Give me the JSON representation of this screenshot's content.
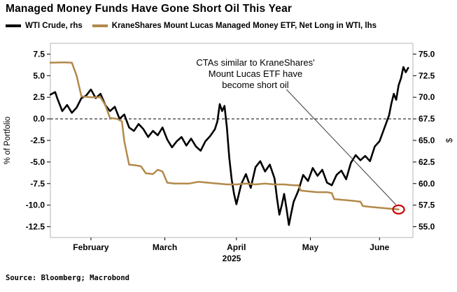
{
  "title": "Managed Money Funds Have Gone Short Oil This Year",
  "legend": [
    {
      "label": "WTI Crude, rhs",
      "color": "#000000"
    },
    {
      "label": "KraneShares Mount Lucas Managed Money ETF, Net Long in WTI, lhs",
      "color": "#b3894a"
    }
  ],
  "annotation": {
    "text": "CTAs similar to KraneShares'\nMount Lucas ETF have\nbecome short oil"
  },
  "source": "Source: Bloomberg; Macrobond",
  "chart_data": {
    "type": "line",
    "title": "Managed Money Funds Have Gone Short Oil This Year",
    "x_unit": "days (late January through mid-June 2025)",
    "x_range": [
      0,
      152
    ],
    "x_ticks": [
      {
        "x": 17,
        "label": "February"
      },
      {
        "x": 48,
        "label": "March"
      },
      {
        "x": 78,
        "label": "April"
      },
      {
        "x": 109,
        "label": "May"
      },
      {
        "x": 138,
        "label": "June"
      }
    ],
    "x_year_label": "2025",
    "zero_line": 0,
    "left_axis": {
      "label": "% of Portfolio",
      "min": -13.75,
      "max": 8.75,
      "ticks": [
        {
          "v": 7.5,
          "label": "7.5"
        },
        {
          "v": 5,
          "label": "5.0"
        },
        {
          "v": 2.5,
          "label": "2.5"
        },
        {
          "v": 0,
          "label": "0.0"
        },
        {
          "v": -2.5,
          "label": "-2.5"
        },
        {
          "v": -5,
          "label": "-5.0"
        },
        {
          "v": -7.5,
          "label": "-7.5"
        },
        {
          "v": -10,
          "label": "-10.0"
        },
        {
          "v": -12.5,
          "label": "-12.5"
        }
      ]
    },
    "right_axis": {
      "label": "$",
      "min": 53.75,
      "max": 76.25,
      "ticks": [
        {
          "v": 75,
          "label": "75.0"
        },
        {
          "v": 72.5,
          "label": "72.5"
        },
        {
          "v": 70,
          "label": "70.0"
        },
        {
          "v": 67.5,
          "label": "67.5"
        },
        {
          "v": 65,
          "label": "65.0"
        },
        {
          "v": 62.5,
          "label": "62.5"
        },
        {
          "v": 60,
          "label": "60.0"
        },
        {
          "v": 57.5,
          "label": "57.5"
        },
        {
          "v": 55,
          "label": "55.0"
        }
      ]
    },
    "series": [
      {
        "name": "WTI Crude, rhs",
        "axis": "right",
        "color": "#000000",
        "width": 2.6,
        "points": [
          [
            0,
            70.3
          ],
          [
            2,
            70.6
          ],
          [
            3,
            69.8
          ],
          [
            5,
            68.4
          ],
          [
            7,
            69.1
          ],
          [
            9,
            68.2
          ],
          [
            11,
            68.8
          ],
          [
            13,
            69.9
          ],
          [
            15,
            70.2
          ],
          [
            17,
            70.9
          ],
          [
            19,
            69.9
          ],
          [
            21,
            70.4
          ],
          [
            23,
            69.1
          ],
          [
            25,
            68.4
          ],
          [
            27,
            68.9
          ],
          [
            29,
            67.5
          ],
          [
            31,
            68.0
          ],
          [
            33,
            66.5
          ],
          [
            35,
            66.1
          ],
          [
            37,
            66.9
          ],
          [
            39,
            66.3
          ],
          [
            41,
            65.4
          ],
          [
            43,
            66.1
          ],
          [
            45,
            65.6
          ],
          [
            47,
            66.5
          ],
          [
            49,
            65.1
          ],
          [
            51,
            64.2
          ],
          [
            53,
            64.9
          ],
          [
            55,
            65.4
          ],
          [
            57,
            64.4
          ],
          [
            59,
            65.2
          ],
          [
            61,
            64.3
          ],
          [
            63,
            63.8
          ],
          [
            65,
            64.9
          ],
          [
            67,
            65.5
          ],
          [
            69,
            66.3
          ],
          [
            70,
            67.2
          ],
          [
            71,
            69.2
          ],
          [
            72,
            68.4
          ],
          [
            73,
            69.0
          ],
          [
            74,
            66.5
          ],
          [
            75,
            63.0
          ],
          [
            76,
            60.5
          ],
          [
            77,
            58.8
          ],
          [
            78,
            57.6
          ],
          [
            80,
            59.9
          ],
          [
            82,
            61.1
          ],
          [
            84,
            59.5
          ],
          [
            86,
            61.9
          ],
          [
            88,
            62.6
          ],
          [
            90,
            61.4
          ],
          [
            92,
            62.2
          ],
          [
            94,
            60.6
          ],
          [
            95,
            58.3
          ],
          [
            96,
            56.4
          ],
          [
            97,
            57.5
          ],
          [
            98,
            58.8
          ],
          [
            99,
            57.1
          ],
          [
            100,
            55.2
          ],
          [
            101,
            56.6
          ],
          [
            102,
            57.9
          ],
          [
            104,
            59.2
          ],
          [
            106,
            61.0
          ],
          [
            108,
            60.3
          ],
          [
            110,
            61.8
          ],
          [
            112,
            60.9
          ],
          [
            114,
            61.6
          ],
          [
            116,
            60.1
          ],
          [
            118,
            59.8
          ],
          [
            120,
            61.0
          ],
          [
            122,
            61.5
          ],
          [
            124,
            60.5
          ],
          [
            126,
            62.4
          ],
          [
            128,
            63.3
          ],
          [
            130,
            62.7
          ],
          [
            132,
            63.2
          ],
          [
            134,
            62.6
          ],
          [
            136,
            64.3
          ],
          [
            138,
            64.9
          ],
          [
            140,
            66.4
          ],
          [
            142,
            67.9
          ],
          [
            143,
            69.3
          ],
          [
            144,
            70.4
          ],
          [
            145,
            69.7
          ],
          [
            146,
            71.4
          ],
          [
            147,
            72.2
          ],
          [
            148,
            73.5
          ],
          [
            149,
            72.9
          ],
          [
            150,
            73.4
          ]
        ]
      },
      {
        "name": "KraneShares Mount Lucas Managed Money ETF, Net Long in WTI, lhs",
        "axis": "left",
        "color": "#b3894a",
        "width": 2.5,
        "points": [
          [
            0,
            6.5
          ],
          [
            6,
            6.55
          ],
          [
            9,
            6.5
          ],
          [
            11,
            5.0
          ],
          [
            13,
            2.6
          ],
          [
            17,
            2.5
          ],
          [
            21,
            2.5
          ],
          [
            23,
            1.6
          ],
          [
            25,
            0.1
          ],
          [
            28,
            0.0
          ],
          [
            30,
            -0.3
          ],
          [
            31,
            -2.6
          ],
          [
            33,
            -5.3
          ],
          [
            36,
            -5.4
          ],
          [
            38,
            -5.5
          ],
          [
            40,
            -6.3
          ],
          [
            43,
            -6.4
          ],
          [
            45,
            -5.9
          ],
          [
            47,
            -6.1
          ],
          [
            49,
            -7.4
          ],
          [
            52,
            -7.5
          ],
          [
            58,
            -7.5
          ],
          [
            62,
            -7.3
          ],
          [
            66,
            -7.4
          ],
          [
            70,
            -7.5
          ],
          [
            74,
            -7.6
          ],
          [
            78,
            -7.6
          ],
          [
            82,
            -7.5
          ],
          [
            86,
            -7.6
          ],
          [
            90,
            -7.5
          ],
          [
            94,
            -7.6
          ],
          [
            98,
            -7.6
          ],
          [
            102,
            -7.7
          ],
          [
            104,
            -7.7
          ],
          [
            105,
            -8.3
          ],
          [
            108,
            -8.4
          ],
          [
            112,
            -8.5
          ],
          [
            116,
            -8.5
          ],
          [
            118,
            -8.6
          ],
          [
            119,
            -9.3
          ],
          [
            123,
            -9.4
          ],
          [
            127,
            -9.5
          ],
          [
            130,
            -9.6
          ],
          [
            131,
            -10.1
          ],
          [
            134,
            -10.2
          ],
          [
            138,
            -10.3
          ],
          [
            142,
            -10.4
          ],
          [
            146,
            -10.5
          ]
        ]
      }
    ],
    "annotation_anchor": {
      "x": 99,
      "y": 3.4
    },
    "highlight": {
      "x": 146,
      "y": -10.5,
      "axis": "left",
      "color": "#cc0000"
    }
  }
}
